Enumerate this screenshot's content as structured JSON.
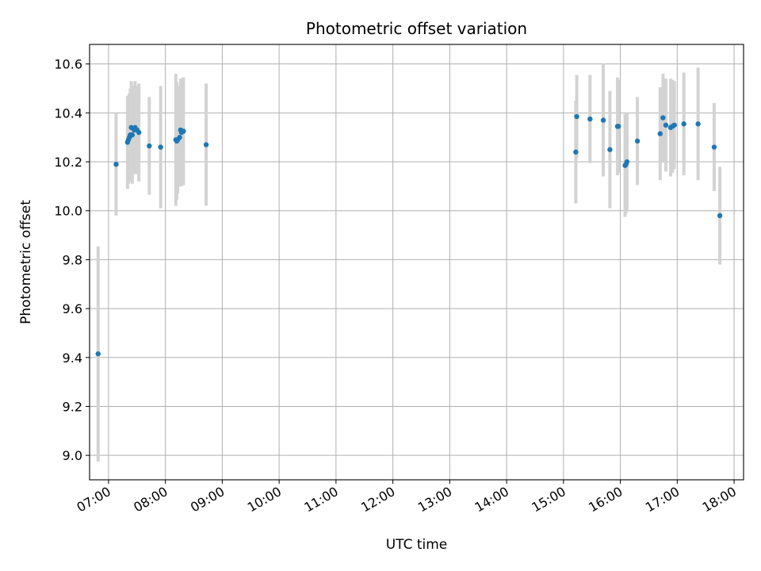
{
  "chart_data": {
    "type": "scatter",
    "title": "Photometric offset variation",
    "xlabel": "UTC time",
    "ylabel": "Photometric offset",
    "xlim": [
      "06:40",
      "18:10"
    ],
    "ylim": [
      8.9,
      10.68
    ],
    "grid": true,
    "x_ticks": [
      "07:00",
      "08:00",
      "09:00",
      "10:00",
      "11:00",
      "12:00",
      "13:00",
      "14:00",
      "15:00",
      "16:00",
      "17:00",
      "18:00"
    ],
    "y_ticks": [
      "9.0",
      "9.2",
      "9.4",
      "9.6",
      "9.8",
      "10.0",
      "10.2",
      "10.4",
      "10.6"
    ],
    "colors": {
      "points": "#1f77b4",
      "errorbars": "#d3d3d3",
      "grid": "#b0b0b0"
    },
    "series": [
      {
        "x": [
          "06:49",
          "07:08",
          "07:20",
          "07:21",
          "07:22",
          "07:23",
          "07:24",
          "07:25",
          "07:27",
          "07:28",
          "07:30",
          "07:32",
          "07:43",
          "07:55",
          "08:11",
          "08:12",
          "08:13",
          "08:15",
          "08:16",
          "08:17",
          "08:19",
          "08:43",
          "15:13",
          "15:14",
          "15:28",
          "15:42",
          "15:49",
          "15:57",
          "15:58",
          "16:05",
          "16:06",
          "16:07",
          "16:18",
          "16:42",
          "16:45",
          "16:48",
          "16:53",
          "16:55",
          "16:57",
          "17:07",
          "17:22",
          "17:39",
          "17:45"
        ],
        "y": [
          9.415,
          10.19,
          10.28,
          10.29,
          10.3,
          10.31,
          10.34,
          10.31,
          10.33,
          10.34,
          10.33,
          10.32,
          10.265,
          10.26,
          10.29,
          10.285,
          10.29,
          10.3,
          10.33,
          10.32,
          10.325,
          10.27,
          10.24,
          10.385,
          10.375,
          10.37,
          10.25,
          10.345,
          10.345,
          10.185,
          10.19,
          10.2,
          10.285,
          10.315,
          10.38,
          10.35,
          10.34,
          10.345,
          10.35,
          10.355,
          10.355,
          10.26,
          9.98
        ],
        "yerr": [
          0.44,
          0.21,
          0.19,
          0.18,
          0.18,
          0.19,
          0.19,
          0.2,
          0.18,
          0.19,
          0.18,
          0.2,
          0.2,
          0.25,
          0.27,
          0.24,
          0.22,
          0.2,
          0.21,
          0.22,
          0.22,
          0.25,
          0.21,
          0.17,
          0.18,
          0.23,
          0.24,
          0.2,
          0.19,
          0.21,
          0.2,
          0.2,
          0.18,
          0.19,
          0.18,
          0.19,
          0.2,
          0.19,
          0.18,
          0.21,
          0.23,
          0.18,
          0.2
        ]
      }
    ]
  }
}
